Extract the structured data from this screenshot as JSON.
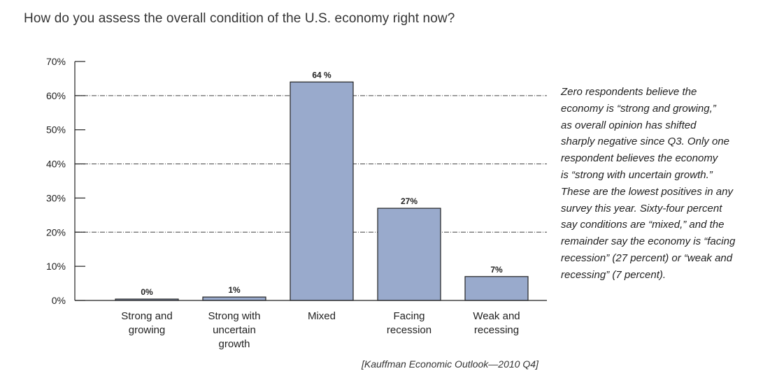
{
  "chart_data": {
    "type": "bar",
    "title": "How do you assess the overall condition of the U.S. economy right now?",
    "categories": [
      [
        "Strong and",
        "growing"
      ],
      [
        "Strong with",
        "uncertain",
        "growth"
      ],
      [
        "Mixed"
      ],
      [
        "Facing",
        "recession"
      ],
      [
        "Weak and",
        "recessing"
      ]
    ],
    "values": [
      0.4,
      1,
      64,
      27,
      7
    ],
    "data_labels": [
      "0%",
      "1%",
      "64 %",
      "27%",
      "7%"
    ],
    "ylim": [
      0,
      70
    ],
    "yticks": [
      0,
      10,
      20,
      30,
      40,
      50,
      60,
      70
    ],
    "ytick_labels": [
      "0%",
      "10%",
      "20%",
      "30%",
      "40%",
      "50%",
      "60%",
      "70%"
    ],
    "grid": "dash-dot horizontal at 20%, 40%, 60%",
    "bar_color": "#99aacc",
    "bar_edge_color": "#222222",
    "legend": "none"
  },
  "commentary_lines": [
    "Zero respondents believe the",
    "economy is “strong and growing,”",
    "as overall opinion has shifted",
    "sharply negative since Q3. Only one",
    "respondent believes the economy",
    "is “strong with uncertain growth.”",
    "These are the lowest positives in any",
    "survey this year. Sixty-four percent",
    "say conditions are “mixed,” and the",
    "remainder say the economy is “facing",
    "recession” (27 percent) or “weak and",
    "recessing” (7 percent)."
  ],
  "source": "[Kauffman Economic Outlook—2010 Q4]"
}
